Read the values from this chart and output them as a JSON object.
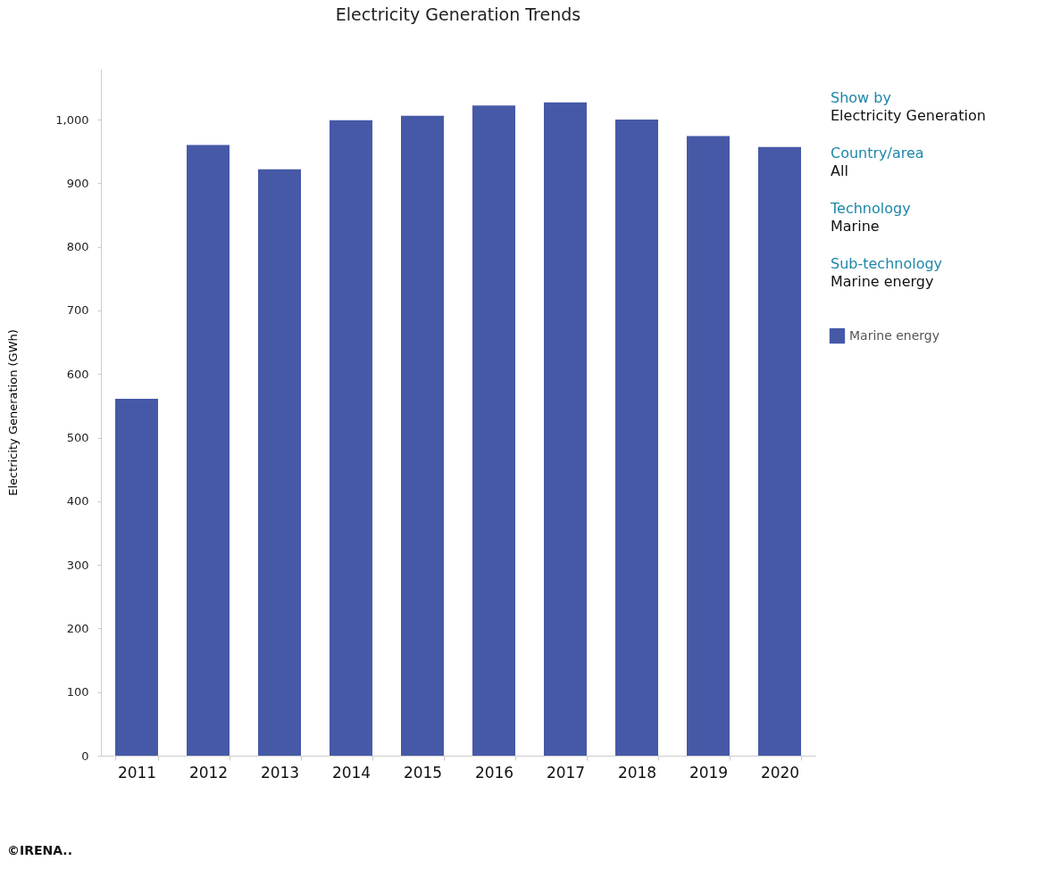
{
  "chart_data": {
    "type": "bar",
    "title": "Electricity Generation Trends",
    "ylabel": "Electricity Generation (GWh)",
    "categories": [
      "2011",
      "2012",
      "2013",
      "2014",
      "2015",
      "2016",
      "2017",
      "2018",
      "2019",
      "2020"
    ],
    "series": [
      {
        "name": "Marine energy",
        "color": "#4659a7",
        "values": [
          561,
          960,
          922,
          999,
          1006,
          1022,
          1027,
          1000,
          974,
          957
        ]
      }
    ],
    "ylim": [
      0,
      1080
    ],
    "yticks": [
      0,
      100,
      200,
      300,
      400,
      500,
      600,
      700,
      800,
      900,
      {
        "value": 1000,
        "label": "1,000"
      }
    ],
    "grid": false,
    "legend": "right",
    "annotations": [
      "Show by",
      "Electricity Generation",
      "Country/area",
      "All",
      "Technology",
      "Marine",
      "Sub-technology",
      "Marine energy",
      "©IRENA.."
    ]
  }
}
